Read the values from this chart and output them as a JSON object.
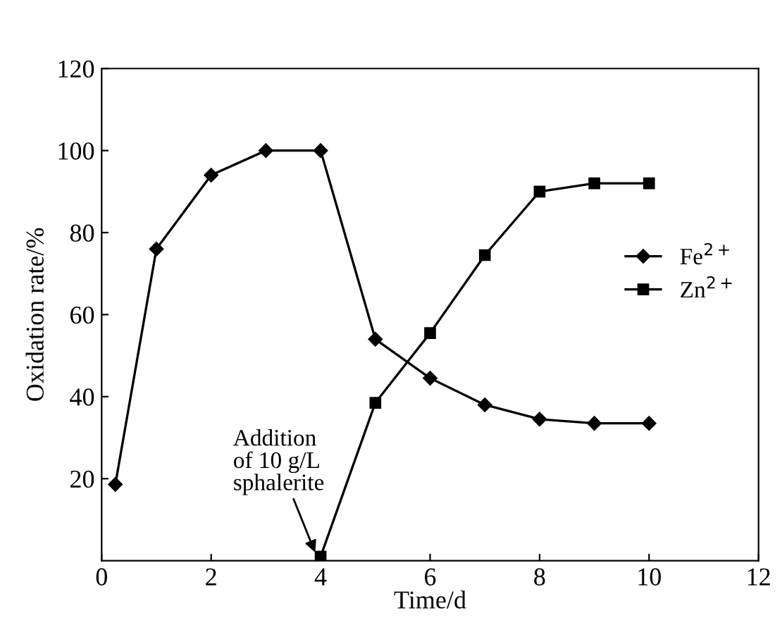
{
  "chart_data": {
    "type": "line",
    "xlabel": "Time/d",
    "ylabel": "Oxidation rate/%",
    "xlim": [
      0,
      12
    ],
    "xticks": [
      0,
      2,
      4,
      6,
      8,
      10,
      12
    ],
    "ylim": [
      0,
      120
    ],
    "yticks": [
      20,
      40,
      60,
      80,
      100,
      120
    ],
    "series": [
      {
        "name": "Fe$^{2+}$",
        "color": "#000000",
        "marker": "diamond",
        "x": [
          0.25,
          1,
          2,
          3,
          4,
          5,
          6,
          7,
          8,
          9,
          10
        ],
        "values": [
          18.6,
          76,
          94,
          100,
          100,
          54,
          44.5,
          38,
          34.5,
          33.5,
          33.5
        ]
      },
      {
        "name": "Zn$^{2+}$",
        "color": "#000000",
        "marker": "square",
        "x": [
          4,
          5,
          6,
          7,
          8,
          9,
          10
        ],
        "values": [
          1,
          38.5,
          55.5,
          74.5,
          90,
          92,
          92
        ]
      }
    ],
    "annotations": [
      {
        "text": "Addition\nof 10 g/L\nsphalerite",
        "x": 3.9,
        "y": 2
      }
    ],
    "legend": "right",
    "grid": false,
    "line_style": "solid"
  }
}
